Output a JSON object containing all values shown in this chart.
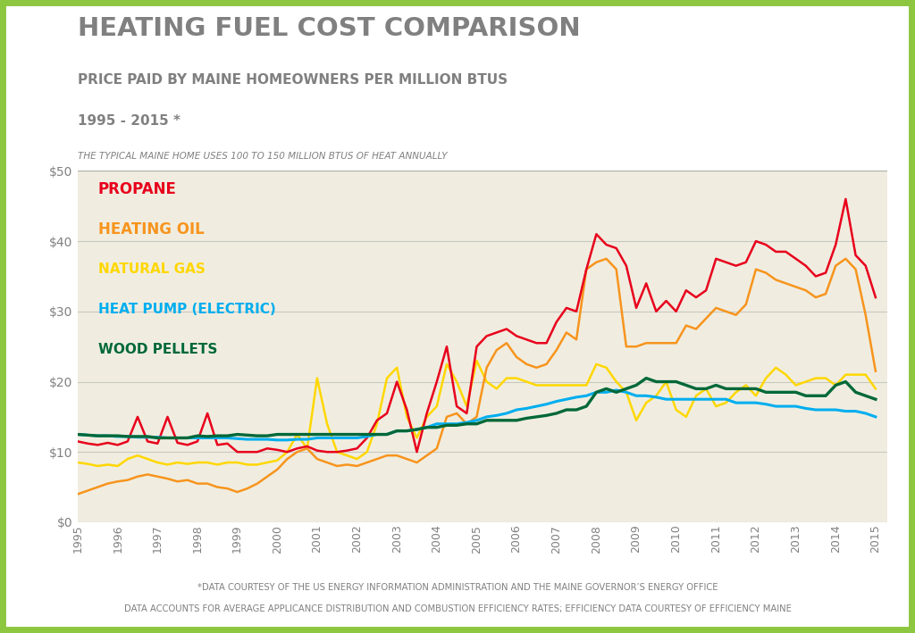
{
  "title": "HEATING FUEL COST COMPARISON",
  "subtitle1": "PRICE PAID BY MAINE HOMEOWNERS PER MILLION BTUS",
  "subtitle2": "1995 - 2015 *",
  "subtitle3": "THE TYPICAL MAINE HOME USES 100 TO 150 MILLION BTUS OF HEAT ANNUALLY",
  "footer1": "*DATA COURTESY OF THE US ENERGY INFORMATION ADMINISTRATION AND THE MAINE GOVERNOR’S ENERGY OFFICE",
  "footer2": "DATA ACCOUNTS FOR AVERAGE APPLICANCE DISTRIBUTION AND COMBUSTION EFFICIENCY RATES; EFFICIENCY DATA COURTESY OF EFFICIENCY MAINE",
  "background_color": "#f0ede0",
  "outer_background": "#ffffff",
  "border_color": "#8dc63f",
  "text_color": "#808080",
  "legend_labels": [
    "PROPANE",
    "HEATING OIL",
    "NATURAL GAS",
    "HEAT PUMP (ELECTRIC)",
    "WOOD PELLETS"
  ],
  "legend_colors": [
    "#e8001c",
    "#f7941d",
    "#ffd700",
    "#00aeef",
    "#006838"
  ],
  "ylim": [
    0,
    50
  ],
  "yticks": [
    0,
    10,
    20,
    30,
    40,
    50
  ],
  "xdata": {
    "1995.0": [
      11.5,
      4.0,
      8.5,
      12.5,
      12.5
    ],
    "1995.25": [
      11.2,
      4.5,
      8.3,
      12.4,
      12.4
    ],
    "1995.5": [
      11.0,
      5.0,
      8.0,
      12.3,
      12.3
    ],
    "1995.75": [
      11.3,
      5.5,
      8.2,
      12.3,
      12.3
    ],
    "1996.0": [
      11.0,
      5.8,
      8.0,
      12.2,
      12.3
    ],
    "1996.25": [
      11.5,
      6.0,
      9.0,
      12.2,
      12.2
    ],
    "1996.5": [
      15.0,
      6.5,
      9.5,
      12.1,
      12.2
    ],
    "1996.75": [
      11.5,
      6.8,
      9.0,
      12.1,
      12.2
    ],
    "1997.0": [
      11.2,
      6.5,
      8.5,
      12.1,
      12.0
    ],
    "1997.25": [
      15.0,
      6.2,
      8.2,
      12.0,
      12.0
    ],
    "1997.5": [
      11.3,
      5.8,
      8.5,
      12.0,
      12.0
    ],
    "1997.75": [
      11.0,
      6.0,
      8.3,
      12.0,
      12.0
    ],
    "1998.0": [
      11.5,
      5.5,
      8.5,
      12.0,
      12.3
    ],
    "1998.25": [
      15.5,
      5.5,
      8.5,
      12.0,
      12.2
    ],
    "1998.5": [
      11.0,
      5.0,
      8.2,
      12.0,
      12.3
    ],
    "1998.75": [
      11.2,
      4.8,
      8.5,
      12.0,
      12.3
    ],
    "1999.0": [
      10.0,
      4.3,
      8.5,
      11.9,
      12.5
    ],
    "1999.25": [
      10.0,
      4.8,
      8.2,
      11.8,
      12.4
    ],
    "1999.5": [
      10.0,
      5.5,
      8.2,
      11.8,
      12.3
    ],
    "1999.75": [
      10.5,
      6.5,
      8.5,
      11.8,
      12.3
    ],
    "2000.0": [
      10.3,
      7.5,
      8.8,
      11.7,
      12.5
    ],
    "2000.25": [
      10.0,
      9.0,
      10.0,
      11.7,
      12.5
    ],
    "2000.5": [
      10.5,
      10.0,
      12.5,
      11.8,
      12.5
    ],
    "2000.75": [
      10.8,
      10.5,
      10.5,
      11.8,
      12.5
    ],
    "2001.0": [
      10.2,
      9.0,
      20.5,
      12.0,
      12.5
    ],
    "2001.25": [
      10.0,
      8.5,
      14.0,
      12.0,
      12.5
    ],
    "2001.5": [
      10.0,
      8.0,
      10.0,
      12.0,
      12.5
    ],
    "2001.75": [
      10.2,
      8.2,
      9.5,
      12.0,
      12.5
    ],
    "2002.0": [
      10.5,
      8.0,
      9.0,
      12.0,
      12.5
    ],
    "2002.25": [
      12.0,
      8.5,
      10.0,
      12.2,
      12.5
    ],
    "2002.5": [
      14.5,
      9.0,
      14.0,
      12.5,
      12.5
    ],
    "2002.75": [
      15.5,
      9.5,
      20.5,
      12.5,
      12.5
    ],
    "2003.0": [
      20.0,
      9.5,
      22.0,
      13.0,
      13.0
    ],
    "2003.25": [
      16.0,
      9.0,
      15.0,
      13.0,
      13.0
    ],
    "2003.5": [
      10.0,
      8.5,
      12.0,
      13.2,
      13.2
    ],
    "2003.75": [
      15.5,
      9.5,
      15.0,
      13.5,
      13.5
    ],
    "2004.0": [
      20.0,
      10.5,
      16.5,
      14.0,
      13.5
    ],
    "2004.25": [
      25.0,
      15.0,
      22.5,
      14.0,
      13.8
    ],
    "2004.5": [
      16.5,
      15.5,
      20.0,
      14.0,
      13.8
    ],
    "2004.75": [
      15.5,
      14.0,
      16.5,
      14.2,
      14.0
    ],
    "2005.0": [
      25.0,
      15.0,
      23.0,
      14.5,
      14.0
    ],
    "2005.25": [
      26.5,
      22.0,
      20.0,
      15.0,
      14.5
    ],
    "2005.5": [
      27.0,
      24.5,
      19.0,
      15.2,
      14.5
    ],
    "2005.75": [
      27.5,
      25.5,
      20.5,
      15.5,
      14.5
    ],
    "2006.0": [
      26.5,
      23.5,
      20.5,
      16.0,
      14.5
    ],
    "2006.25": [
      26.0,
      22.5,
      20.0,
      16.2,
      14.8
    ],
    "2006.5": [
      25.5,
      22.0,
      19.5,
      16.5,
      15.0
    ],
    "2006.75": [
      25.5,
      22.5,
      19.5,
      16.8,
      15.2
    ],
    "2007.0": [
      28.5,
      24.5,
      19.5,
      17.2,
      15.5
    ],
    "2007.25": [
      30.5,
      27.0,
      19.5,
      17.5,
      16.0
    ],
    "2007.5": [
      30.0,
      26.0,
      19.5,
      17.8,
      16.0
    ],
    "2007.75": [
      36.0,
      36.0,
      19.5,
      18.0,
      16.5
    ],
    "2008.0": [
      41.0,
      37.0,
      22.5,
      18.5,
      18.5
    ],
    "2008.25": [
      39.5,
      37.5,
      22.0,
      18.5,
      19.0
    ],
    "2008.5": [
      39.0,
      36.0,
      20.0,
      18.8,
      18.5
    ],
    "2008.75": [
      36.5,
      25.0,
      18.5,
      18.5,
      19.0
    ],
    "2009.0": [
      30.5,
      25.0,
      14.5,
      18.0,
      19.5
    ],
    "2009.25": [
      34.0,
      25.5,
      17.0,
      18.0,
      20.5
    ],
    "2009.5": [
      30.0,
      25.5,
      18.0,
      17.8,
      20.0
    ],
    "2009.75": [
      31.5,
      25.5,
      20.0,
      17.5,
      20.0
    ],
    "2010.0": [
      30.0,
      25.5,
      16.0,
      17.5,
      20.0
    ],
    "2010.25": [
      33.0,
      28.0,
      15.0,
      17.5,
      19.5
    ],
    "2010.5": [
      32.0,
      27.5,
      18.0,
      17.5,
      19.0
    ],
    "2010.75": [
      33.0,
      29.0,
      19.0,
      17.5,
      19.0
    ],
    "2011.0": [
      37.5,
      30.5,
      16.5,
      17.5,
      19.5
    ],
    "2011.25": [
      37.0,
      30.0,
      17.0,
      17.5,
      19.0
    ],
    "2011.5": [
      36.5,
      29.5,
      18.5,
      17.0,
      19.0
    ],
    "2011.75": [
      37.0,
      31.0,
      19.5,
      17.0,
      19.0
    ],
    "2012.0": [
      40.0,
      36.0,
      18.0,
      17.0,
      19.0
    ],
    "2012.25": [
      39.5,
      35.5,
      20.5,
      16.8,
      18.5
    ],
    "2012.5": [
      38.5,
      34.5,
      22.0,
      16.5,
      18.5
    ],
    "2012.75": [
      38.5,
      34.0,
      21.0,
      16.5,
      18.5
    ],
    "2013.0": [
      37.5,
      33.5,
      19.5,
      16.5,
      18.5
    ],
    "2013.25": [
      36.5,
      33.0,
      20.0,
      16.2,
      18.0
    ],
    "2013.5": [
      35.0,
      32.0,
      20.5,
      16.0,
      18.0
    ],
    "2013.75": [
      35.5,
      32.5,
      20.5,
      16.0,
      18.0
    ],
    "2014.0": [
      39.5,
      36.5,
      19.5,
      16.0,
      19.5
    ],
    "2014.25": [
      46.0,
      37.5,
      21.0,
      15.8,
      20.0
    ],
    "2014.5": [
      38.0,
      36.0,
      21.0,
      15.8,
      18.5
    ],
    "2014.75": [
      36.5,
      29.5,
      21.0,
      15.5,
      18.0
    ],
    "2015.0": [
      32.0,
      21.5,
      19.0,
      15.0,
      17.5
    ]
  }
}
